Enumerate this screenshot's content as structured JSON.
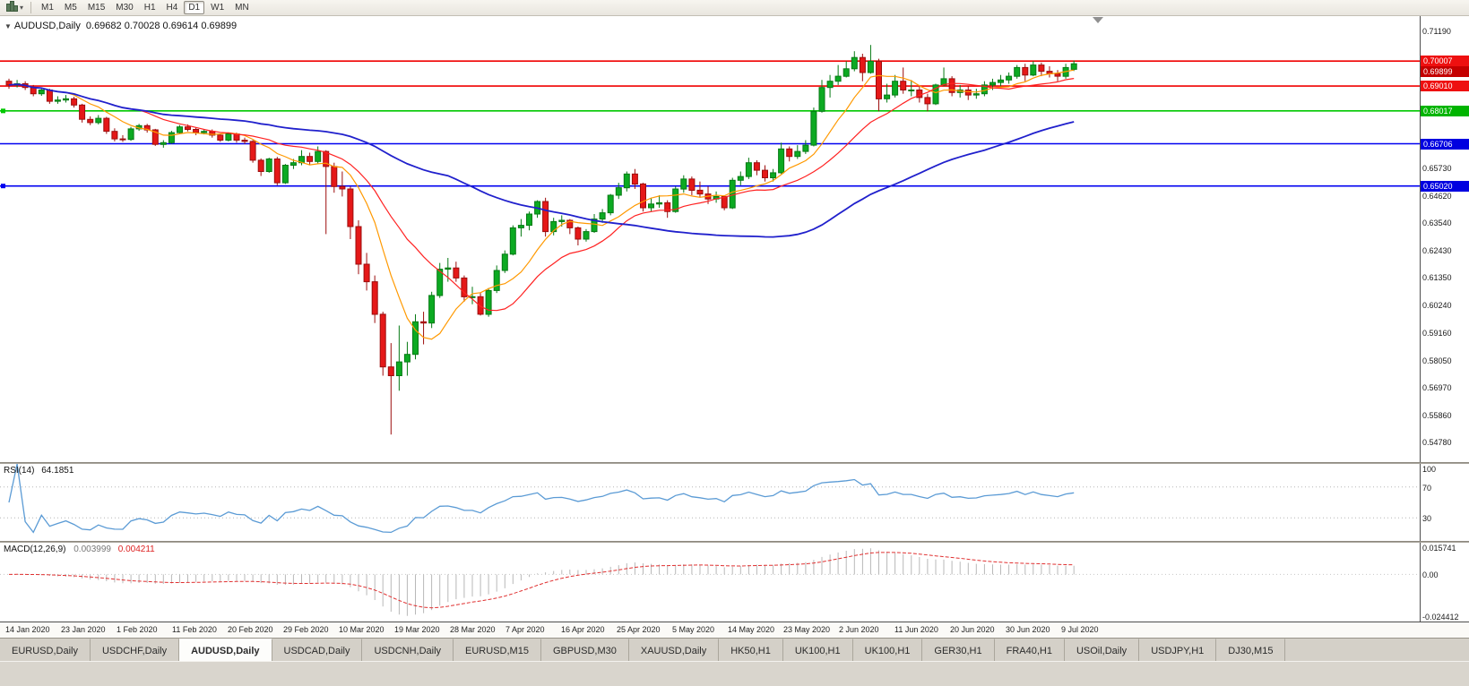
{
  "toolbar": {
    "timeframes": [
      "M1",
      "M5",
      "M15",
      "M30",
      "H1",
      "H4",
      "D1",
      "W1",
      "MN"
    ],
    "active": "D1"
  },
  "chart": {
    "title": "AUDUSD,Daily",
    "ohlc": "0.69682 0.70028 0.69614 0.69899",
    "price_axis": [
      {
        "text": "0.71190",
        "price": 0.7119,
        "style": "plain"
      },
      {
        "text": "0.70007",
        "price": 0.70007,
        "style": "red"
      },
      {
        "text": "0.69899",
        "price": 0.69899,
        "style": "current"
      },
      {
        "text": "0.69010",
        "price": 0.6901,
        "style": "red"
      },
      {
        "text": "0.68017",
        "price": 0.68017,
        "style": "green"
      },
      {
        "text": "0.66706",
        "price": 0.66706,
        "style": "blue"
      },
      {
        "text": "0.65730",
        "price": 0.6573,
        "style": "plain"
      },
      {
        "text": "0.65020",
        "price": 0.6502,
        "style": "blue"
      },
      {
        "text": "0.64620",
        "price": 0.6462,
        "style": "plain"
      },
      {
        "text": "0.63540",
        "price": 0.6354,
        "style": "plain"
      },
      {
        "text": "0.62430",
        "price": 0.6243,
        "style": "plain"
      },
      {
        "text": "0.61350",
        "price": 0.6135,
        "style": "plain"
      },
      {
        "text": "0.60240",
        "price": 0.6024,
        "style": "plain"
      },
      {
        "text": "0.59160",
        "price": 0.5916,
        "style": "plain"
      },
      {
        "text": "0.58050",
        "price": 0.5805,
        "style": "plain"
      },
      {
        "text": "0.56970",
        "price": 0.5697,
        "style": "plain"
      },
      {
        "text": "0.55860",
        "price": 0.5586,
        "style": "plain"
      },
      {
        "text": "0.54780",
        "price": 0.5478,
        "style": "plain"
      }
    ]
  },
  "rsi": {
    "label": "RSI(14)",
    "value": "64.1851",
    "axis": [
      {
        "text": "100",
        "value": 100
      },
      {
        "text": "70",
        "value": 70
      },
      {
        "text": "30",
        "value": 30
      }
    ]
  },
  "macd": {
    "label": "MACD(12,26,9)",
    "value_main": "0.003999",
    "value_signal": "0.004211",
    "axis": [
      {
        "text": "0.015741",
        "value": 0.015741
      },
      {
        "text": "0.00",
        "value": 0
      },
      {
        "text": "-0.024412",
        "value": -0.024412
      }
    ]
  },
  "tabs": {
    "active_index": 2,
    "items": [
      "EURUSD,Daily",
      "USDCHF,Daily",
      "AUDUSD,Daily",
      "USDCAD,Daily",
      "USDCNH,Daily",
      "EURUSD,M15",
      "GBPUSD,M30",
      "XAUUSD,Daily",
      "HK50,H1",
      "UK100,H1",
      "UK100,H1",
      "GER30,H1",
      "FRA40,H1",
      "USOil,Daily",
      "USDJPY,H1",
      "DJ30,M15"
    ],
    "note": "AUDUSD,Daily is the active chart tab"
  },
  "chart_data": {
    "type": "candlestick",
    "symbol": "AUDUSD",
    "timeframe": "Daily",
    "title": "AUDUSD,Daily",
    "ohlc_display": {
      "open": 0.69682,
      "high": 0.70028,
      "low": 0.69614,
      "close": 0.69899
    },
    "ylim": [
      0.54,
      0.718
    ],
    "x_labels": [
      "14 Jan 2020",
      "23 Jan 2020",
      "1 Feb 2020",
      "11 Feb 2020",
      "20 Feb 2020",
      "29 Feb 2020",
      "10 Mar 2020",
      "19 Mar 2020",
      "28 Mar 2020",
      "7 Apr 2020",
      "16 Apr 2020",
      "25 Apr 2020",
      "5 May 2020",
      "14 May 2020",
      "23 May 2020",
      "2 Jun 2020",
      "11 Jun 2020",
      "20 Jun 2020",
      "30 Jun 2020",
      "9 Jul 2020"
    ],
    "hlines": [
      {
        "price": 0.70007,
        "color_key": "line_red",
        "handle": false
      },
      {
        "price": 0.6901,
        "color_key": "line_red",
        "handle": false
      },
      {
        "price": 0.68017,
        "color_key": "line_green",
        "handle": true
      },
      {
        "price": 0.66706,
        "color_key": "line_blue",
        "handle": false
      },
      {
        "price": 0.6502,
        "color_key": "line_blue",
        "handle": true
      }
    ],
    "moving_averages": [
      {
        "period": 8,
        "color_key": "ma_fast"
      },
      {
        "period": 17,
        "color_key": "ma_mid"
      },
      {
        "period": 55,
        "color_key": "ma_slow"
      }
    ],
    "indicators": [
      {
        "name": "RSI",
        "period": 14,
        "last_value": 64.1851,
        "levels": [
          70,
          30
        ],
        "range": [
          0,
          100
        ]
      },
      {
        "name": "MACD",
        "fast": 12,
        "slow": 26,
        "signal": 9,
        "last_main": 0.003999,
        "last_signal": 0.004211,
        "range": [
          -0.024412,
          0.015741
        ]
      }
    ],
    "colors": {
      "background": "#ffffff",
      "bull": "#0caa22",
      "bull_border": "#067a14",
      "bear": "#e51818",
      "bear_border": "#9c0d0d",
      "ma_fast": "#ff9900",
      "ma_mid": "#ff2222",
      "ma_slow": "#2020cc",
      "line_red": "#f00000",
      "line_green": "#00c800",
      "line_blue": "#0000f0",
      "rsi": "#5b9bd5",
      "macd_hist": "#b8b8b8",
      "macd_signal": "#e03030"
    },
    "candles": [
      [
        0.692,
        0.693,
        0.689,
        0.6905
      ],
      [
        0.6905,
        0.6925,
        0.6895,
        0.691
      ],
      [
        0.691,
        0.692,
        0.6885,
        0.6895
      ],
      [
        0.6895,
        0.6905,
        0.686,
        0.687
      ],
      [
        0.687,
        0.6895,
        0.6862,
        0.6885
      ],
      [
        0.6885,
        0.689,
        0.683,
        0.684
      ],
      [
        0.684,
        0.686,
        0.683,
        0.6845
      ],
      [
        0.6845,
        0.6865,
        0.6835,
        0.685
      ],
      [
        0.685,
        0.6858,
        0.6815,
        0.6825
      ],
      [
        0.6825,
        0.683,
        0.6755,
        0.6768
      ],
      [
        0.6768,
        0.678,
        0.6745,
        0.6755
      ],
      [
        0.6755,
        0.6785,
        0.6748,
        0.6772
      ],
      [
        0.6772,
        0.6778,
        0.671,
        0.672
      ],
      [
        0.672,
        0.6732,
        0.668,
        0.669
      ],
      [
        0.669,
        0.6705,
        0.6678,
        0.6688
      ],
      [
        0.6688,
        0.6738,
        0.6682,
        0.673
      ],
      [
        0.673,
        0.675,
        0.6722,
        0.6743
      ],
      [
        0.6743,
        0.675,
        0.6715,
        0.6726
      ],
      [
        0.6726,
        0.673,
        0.6662,
        0.6668
      ],
      [
        0.6668,
        0.6685,
        0.6655,
        0.6675
      ],
      [
        0.6675,
        0.6722,
        0.667,
        0.6715
      ],
      [
        0.6715,
        0.6745,
        0.671,
        0.6738
      ],
      [
        0.6738,
        0.6748,
        0.672,
        0.6728
      ],
      [
        0.6728,
        0.6735,
        0.6705,
        0.6715
      ],
      [
        0.6715,
        0.6728,
        0.6708,
        0.672
      ],
      [
        0.672,
        0.6728,
        0.6695,
        0.6705
      ],
      [
        0.6705,
        0.6712,
        0.6678,
        0.6685
      ],
      [
        0.6685,
        0.6715,
        0.668,
        0.671
      ],
      [
        0.671,
        0.6715,
        0.6675,
        0.6685
      ],
      [
        0.6685,
        0.6695,
        0.667,
        0.668
      ],
      [
        0.668,
        0.6685,
        0.6595,
        0.6605
      ],
      [
        0.6605,
        0.6612,
        0.6542,
        0.656
      ],
      [
        0.656,
        0.6615,
        0.6555,
        0.661
      ],
      [
        0.661,
        0.6618,
        0.6505,
        0.6515
      ],
      [
        0.6515,
        0.659,
        0.651,
        0.6585
      ],
      [
        0.6585,
        0.661,
        0.657,
        0.6595
      ],
      [
        0.6595,
        0.6645,
        0.6585,
        0.662
      ],
      [
        0.662,
        0.6635,
        0.6585,
        0.66
      ],
      [
        0.66,
        0.666,
        0.659,
        0.664
      ],
      [
        0.664,
        0.6645,
        0.631,
        0.658
      ],
      [
        0.658,
        0.6595,
        0.6475,
        0.65
      ],
      [
        0.65,
        0.656,
        0.646,
        0.649
      ],
      [
        0.649,
        0.65,
        0.629,
        0.634
      ],
      [
        0.634,
        0.6365,
        0.615,
        0.619
      ],
      [
        0.619,
        0.6235,
        0.6085,
        0.612
      ],
      [
        0.612,
        0.6145,
        0.5955,
        0.599
      ],
      [
        0.599,
        0.6,
        0.5745,
        0.578
      ],
      [
        0.578,
        0.5875,
        0.551,
        0.5745
      ],
      [
        0.5745,
        0.5945,
        0.5685,
        0.58
      ],
      [
        0.58,
        0.588,
        0.5745,
        0.583
      ],
      [
        0.583,
        0.599,
        0.581,
        0.596
      ],
      [
        0.596,
        0.6,
        0.587,
        0.5955
      ],
      [
        0.5955,
        0.608,
        0.5935,
        0.6065
      ],
      [
        0.6065,
        0.6195,
        0.6055,
        0.617
      ],
      [
        0.617,
        0.6215,
        0.612,
        0.6175
      ],
      [
        0.6175,
        0.62,
        0.612,
        0.6135
      ],
      [
        0.6135,
        0.6145,
        0.604,
        0.606
      ],
      [
        0.606,
        0.61,
        0.603,
        0.606
      ],
      [
        0.606,
        0.6075,
        0.5985,
        0.599
      ],
      [
        0.599,
        0.6095,
        0.598,
        0.6085
      ],
      [
        0.6085,
        0.6185,
        0.6075,
        0.6165
      ],
      [
        0.6165,
        0.6245,
        0.6155,
        0.623
      ],
      [
        0.623,
        0.6345,
        0.6225,
        0.6335
      ],
      [
        0.6335,
        0.637,
        0.63,
        0.6345
      ],
      [
        0.6345,
        0.64,
        0.6325,
        0.639
      ],
      [
        0.639,
        0.6445,
        0.6375,
        0.644
      ],
      [
        0.644,
        0.6455,
        0.63,
        0.632
      ],
      [
        0.632,
        0.6375,
        0.6305,
        0.636
      ],
      [
        0.636,
        0.6385,
        0.634,
        0.6365
      ],
      [
        0.6365,
        0.637,
        0.631,
        0.6335
      ],
      [
        0.6335,
        0.634,
        0.6265,
        0.629
      ],
      [
        0.629,
        0.633,
        0.628,
        0.632
      ],
      [
        0.632,
        0.639,
        0.6315,
        0.637
      ],
      [
        0.637,
        0.641,
        0.6355,
        0.6395
      ],
      [
        0.6395,
        0.647,
        0.6385,
        0.6465
      ],
      [
        0.6465,
        0.6515,
        0.645,
        0.6495
      ],
      [
        0.6495,
        0.656,
        0.648,
        0.655
      ],
      [
        0.655,
        0.657,
        0.649,
        0.651
      ],
      [
        0.651,
        0.6515,
        0.64,
        0.6415
      ],
      [
        0.6415,
        0.6455,
        0.64,
        0.643
      ],
      [
        0.643,
        0.6465,
        0.6415,
        0.6435
      ],
      [
        0.6435,
        0.6445,
        0.6375,
        0.64
      ],
      [
        0.64,
        0.65,
        0.6395,
        0.649
      ],
      [
        0.649,
        0.6545,
        0.6475,
        0.653
      ],
      [
        0.653,
        0.654,
        0.6465,
        0.6485
      ],
      [
        0.6485,
        0.652,
        0.6455,
        0.647
      ],
      [
        0.647,
        0.65,
        0.643,
        0.645
      ],
      [
        0.645,
        0.648,
        0.6435,
        0.646
      ],
      [
        0.646,
        0.6465,
        0.6405,
        0.6415
      ],
      [
        0.6415,
        0.6535,
        0.641,
        0.6525
      ],
      [
        0.6525,
        0.656,
        0.6505,
        0.654
      ],
      [
        0.654,
        0.6615,
        0.653,
        0.6595
      ],
      [
        0.6595,
        0.6605,
        0.6545,
        0.6565
      ],
      [
        0.6565,
        0.6585,
        0.652,
        0.6535
      ],
      [
        0.6535,
        0.657,
        0.652,
        0.6555
      ],
      [
        0.6555,
        0.6675,
        0.655,
        0.665
      ],
      [
        0.665,
        0.666,
        0.66,
        0.662
      ],
      [
        0.662,
        0.6665,
        0.661,
        0.664
      ],
      [
        0.664,
        0.6685,
        0.663,
        0.6665
      ],
      [
        0.6665,
        0.6815,
        0.666,
        0.68
      ],
      [
        0.68,
        0.6925,
        0.6795,
        0.6895
      ],
      [
        0.6895,
        0.6945,
        0.6855,
        0.692
      ],
      [
        0.692,
        0.6985,
        0.6905,
        0.694
      ],
      [
        0.694,
        0.7,
        0.6935,
        0.697
      ],
      [
        0.697,
        0.704,
        0.696,
        0.7015
      ],
      [
        0.7015,
        0.703,
        0.692,
        0.6955
      ],
      [
        0.6955,
        0.7065,
        0.695,
        0.7
      ],
      [
        0.7,
        0.701,
        0.68,
        0.685
      ],
      [
        0.685,
        0.691,
        0.6835,
        0.6865
      ],
      [
        0.6865,
        0.6945,
        0.6855,
        0.692
      ],
      [
        0.692,
        0.6975,
        0.687,
        0.6885
      ],
      [
        0.6885,
        0.6925,
        0.686,
        0.6885
      ],
      [
        0.6885,
        0.6905,
        0.6835,
        0.6855
      ],
      [
        0.6855,
        0.687,
        0.68,
        0.683
      ],
      [
        0.683,
        0.691,
        0.6825,
        0.6905
      ],
      [
        0.6905,
        0.6975,
        0.69,
        0.693
      ],
      [
        0.693,
        0.694,
        0.686,
        0.6875
      ],
      [
        0.6875,
        0.6905,
        0.6855,
        0.6885
      ],
      [
        0.6885,
        0.69,
        0.6845,
        0.6865
      ],
      [
        0.6865,
        0.689,
        0.685,
        0.687
      ],
      [
        0.687,
        0.692,
        0.686,
        0.6905
      ],
      [
        0.6905,
        0.693,
        0.6885,
        0.6915
      ],
      [
        0.6915,
        0.6945,
        0.69,
        0.6925
      ],
      [
        0.6925,
        0.6955,
        0.691,
        0.694
      ],
      [
        0.694,
        0.6985,
        0.693,
        0.6975
      ],
      [
        0.6975,
        0.699,
        0.692,
        0.6945
      ],
      [
        0.6945,
        0.7,
        0.694,
        0.6985
      ],
      [
        0.6985,
        0.6995,
        0.694,
        0.696
      ],
      [
        0.696,
        0.698,
        0.6935,
        0.695
      ],
      [
        0.695,
        0.6965,
        0.692,
        0.694
      ],
      [
        0.694,
        0.699,
        0.693,
        0.6975
      ],
      [
        0.6968,
        0.7003,
        0.6961,
        0.699
      ]
    ]
  }
}
